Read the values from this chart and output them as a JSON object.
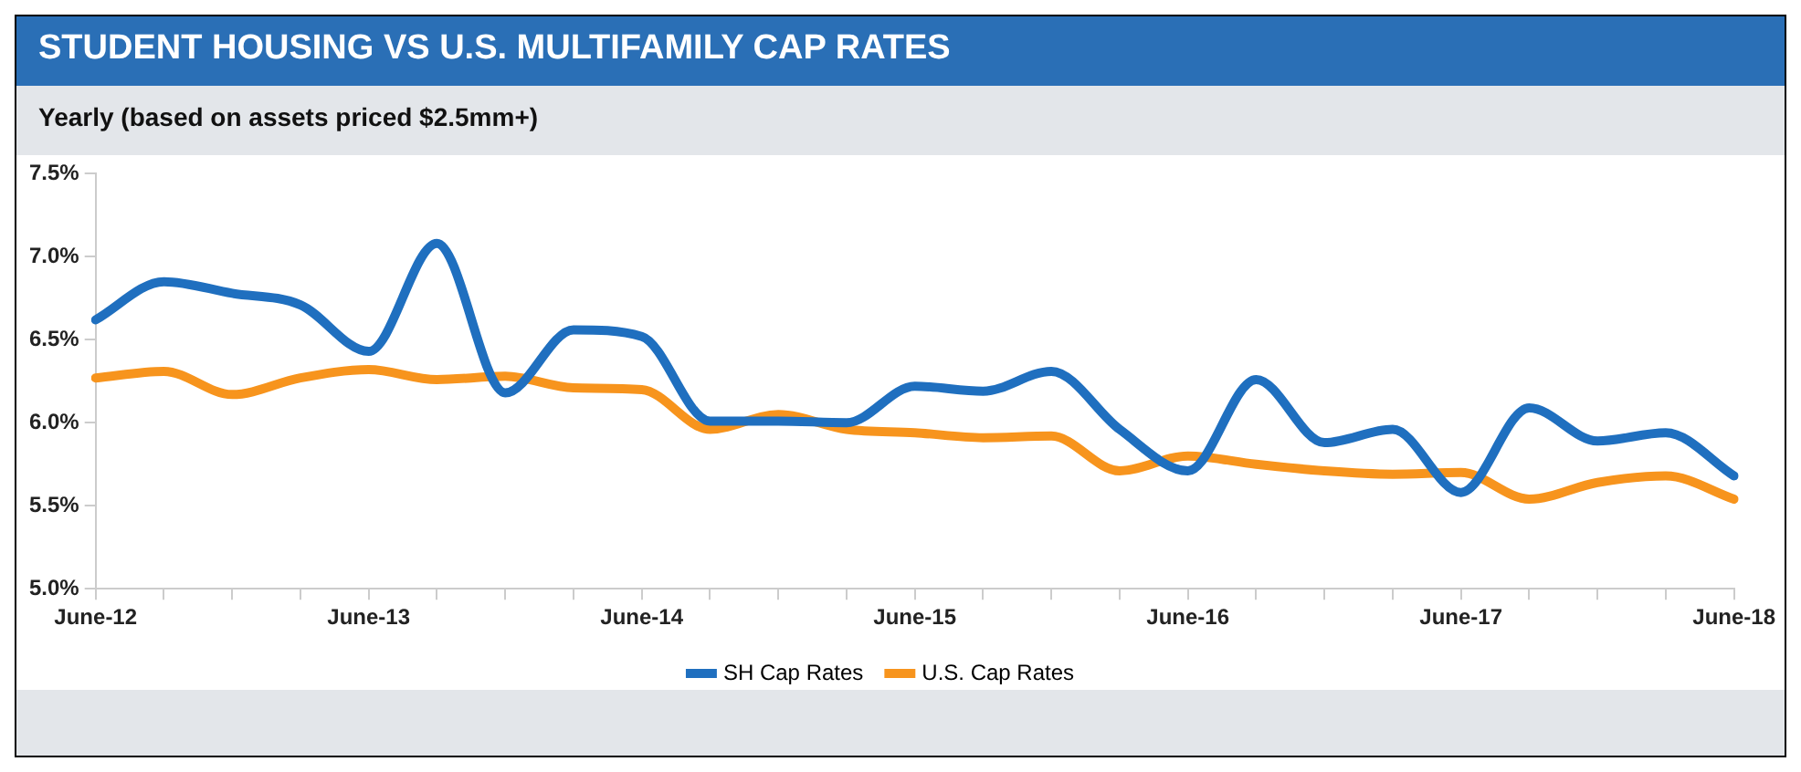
{
  "chart_data": {
    "type": "line",
    "title": "STUDENT HOUSING VS U.S. MULTIFAMILY CAP RATES",
    "subtitle": "Yearly (based on assets priced $2.5mm+)",
    "categories": [
      "June-12",
      null,
      null,
      null,
      "June-13",
      null,
      null,
      null,
      "June-14",
      null,
      null,
      null,
      "June-15",
      null,
      null,
      null,
      "June-16",
      null,
      null,
      null,
      "June-17",
      null,
      null,
      null,
      "June-18"
    ],
    "series": [
      {
        "name": "SH Cap Rates",
        "color": "#1f6fbf",
        "values": [
          6.62,
          6.85,
          6.78,
          6.71,
          6.43,
          7.08,
          6.18,
          6.56,
          6.52,
          6.01,
          6.01,
          6.0,
          6.22,
          6.19,
          6.31,
          5.96,
          5.71,
          6.26,
          5.88,
          5.96,
          5.58,
          6.09,
          5.89,
          5.94,
          5.68
        ]
      },
      {
        "name": "U.S. Cap Rates",
        "color": "#f7941d",
        "values": [
          6.27,
          6.31,
          6.17,
          6.27,
          6.32,
          6.26,
          6.28,
          6.21,
          6.2,
          5.96,
          6.05,
          5.96,
          5.94,
          5.91,
          5.92,
          5.71,
          5.8,
          5.75,
          5.71,
          5.69,
          5.7,
          5.54,
          5.64,
          5.68,
          5.54
        ]
      }
    ],
    "ylim": [
      5.0,
      7.5
    ],
    "yticks": [
      {
        "value": 5.0,
        "label": "5.0%"
      },
      {
        "value": 5.5,
        "label": "5.5%"
      },
      {
        "value": 6.0,
        "label": "6.0%"
      },
      {
        "value": 6.5,
        "label": "6.5%"
      },
      {
        "value": 7.0,
        "label": "7.0%"
      },
      {
        "value": 7.5,
        "label": "7.5%"
      }
    ],
    "grid": false,
    "legend": "bottom",
    "marker": "none",
    "line_style": "solid"
  }
}
